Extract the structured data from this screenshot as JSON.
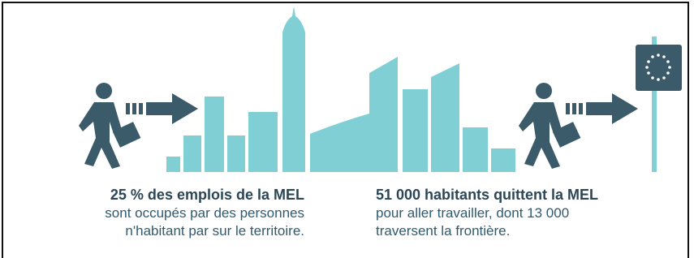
{
  "left": {
    "headline": "25 % des emplois de la MEL",
    "lines": [
      "sont occupés par des personnes",
      "n'habitant par sur le territoire."
    ]
  },
  "right": {
    "headline": "51 000 habitants quittent la MEL",
    "lines": [
      "pour aller travailler, dont 13 000",
      "traversent la frontière."
    ]
  }
}
